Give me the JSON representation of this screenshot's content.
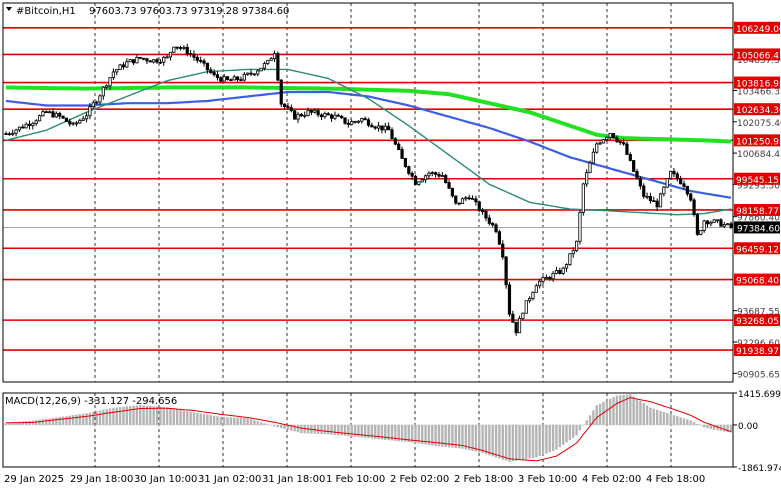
{
  "header": {
    "symbol": "#Bitcoin,H1",
    "ohlc": "97603.73 97603.73 97319.28 97384.60"
  },
  "colors": {
    "background": "#ffffff",
    "candle": "#000000",
    "level_line": "#e00000",
    "level_label_bg": "#e00000",
    "level_label_text": "#ffffff",
    "ma_fast": "#2e8b7a",
    "ma_mid": "#3b5fe0",
    "ma_slow": "#22e022",
    "grid": "#000000",
    "macd_hist": "#b4b4b4",
    "macd_signal": "#e00000",
    "current_price_bg": "#000000",
    "current_price_text": "#ffffff"
  },
  "chart_data": [
    {
      "type": "candlestick",
      "symbol": "#Bitcoin",
      "timeframe": "H1",
      "price_axis_ticks": [
        "104857.30",
        "103466.35",
        "102075.40",
        "100684.45",
        "99293.50",
        "97860.40",
        "93687.55",
        "92296.60",
        "90905.65"
      ],
      "horizontal_levels": [
        106249.06,
        105066.47,
        103816.95,
        102634.36,
        101250.95,
        99545.15,
        98158.77,
        96459.12,
        95068.4,
        93268.05,
        91938.97
      ],
      "level_labels": [
        "106249.06",
        "105066.47",
        "103816.95",
        "102634.36",
        "101250.95",
        "99545.15",
        "98158.77",
        "96459.12",
        "95068.40",
        "93268.05",
        "91938.97"
      ],
      "current_price": 97384.6,
      "current_price_label": "97384.60",
      "ylim": [
        90520,
        107350
      ],
      "x_tick_labels": [
        "29 Jan 2025",
        "29 Jan 18:00",
        "30 Jan 10:00",
        "31 Jan 02:00",
        "31 Jan 18:00",
        "1 Feb 10:00",
        "2 Feb 02:00",
        "2 Feb 18:00",
        "3 Feb 10:00",
        "4 Feb 02:00",
        "4 Feb 18:00"
      ],
      "close_path": [
        [
          0,
          101550
        ],
        [
          4,
          101800
        ],
        [
          8,
          102100
        ],
        [
          12,
          102500
        ],
        [
          16,
          102300
        ],
        [
          20,
          101900
        ],
        [
          24,
          102400
        ],
        [
          28,
          103300
        ],
        [
          32,
          104300
        ],
        [
          36,
          104700
        ],
        [
          40,
          104900
        ],
        [
          44,
          104800
        ],
        [
          48,
          104900
        ],
        [
          50,
          105500
        ],
        [
          54,
          105200
        ],
        [
          58,
          104700
        ],
        [
          62,
          104100
        ],
        [
          66,
          103900
        ],
        [
          70,
          104000
        ],
        [
          74,
          104300
        ],
        [
          78,
          104700
        ],
        [
          80,
          105200
        ],
        [
          82,
          102900
        ],
        [
          86,
          102300
        ],
        [
          90,
          102500
        ],
        [
          94,
          102400
        ],
        [
          98,
          102300
        ],
        [
          102,
          102000
        ],
        [
          106,
          102200
        ],
        [
          110,
          101900
        ],
        [
          114,
          101700
        ],
        [
          118,
          100400
        ],
        [
          122,
          99400
        ],
        [
          126,
          99800
        ],
        [
          130,
          99700
        ],
        [
          134,
          98400
        ],
        [
          138,
          98800
        ],
        [
          142,
          98000
        ],
        [
          146,
          97300
        ],
        [
          148,
          96200
        ],
        [
          150,
          93600
        ],
        [
          152,
          92800
        ],
        [
          154,
          93700
        ],
        [
          158,
          94900
        ],
        [
          162,
          95200
        ],
        [
          166,
          95500
        ],
        [
          170,
          96700
        ],
        [
          172,
          99300
        ],
        [
          176,
          101100
        ],
        [
          180,
          101600
        ],
        [
          184,
          101000
        ],
        [
          188,
          99500
        ],
        [
          190,
          98800
        ],
        [
          194,
          98400
        ],
        [
          198,
          99800
        ],
        [
          202,
          99300
        ],
        [
          204,
          98700
        ],
        [
          206,
          97000
        ],
        [
          208,
          97700
        ],
        [
          212,
          97600
        ],
        [
          216,
          97384.6
        ]
      ],
      "ma_fast": [
        [
          0,
          101250
        ],
        [
          12,
          101700
        ],
        [
          24,
          102500
        ],
        [
          36,
          103200
        ],
        [
          48,
          103900
        ],
        [
          60,
          104300
        ],
        [
          72,
          104400
        ],
        [
          84,
          104400
        ],
        [
          96,
          104000
        ],
        [
          108,
          103100
        ],
        [
          120,
          101900
        ],
        [
          132,
          100600
        ],
        [
          144,
          99300
        ],
        [
          156,
          98500
        ],
        [
          168,
          98200
        ],
        [
          176,
          98150
        ],
        [
          188,
          98050
        ],
        [
          200,
          97950
        ],
        [
          208,
          98000
        ],
        [
          216,
          98200
        ]
      ],
      "ma_mid": [
        [
          0,
          103000
        ],
        [
          12,
          102800
        ],
        [
          24,
          102800
        ],
        [
          36,
          102900
        ],
        [
          48,
          102900
        ],
        [
          60,
          103000
        ],
        [
          72,
          103200
        ],
        [
          84,
          103400
        ],
        [
          96,
          103400
        ],
        [
          108,
          103200
        ],
        [
          120,
          102800
        ],
        [
          132,
          102300
        ],
        [
          144,
          101800
        ],
        [
          156,
          101200
        ],
        [
          168,
          100500
        ],
        [
          180,
          100000
        ],
        [
          192,
          99500
        ],
        [
          204,
          99000
        ],
        [
          216,
          98700
        ]
      ],
      "ma_slow": [
        [
          0,
          103600
        ],
        [
          24,
          103550
        ],
        [
          48,
          103600
        ],
        [
          72,
          103600
        ],
        [
          96,
          103550
        ],
        [
          120,
          103450
        ],
        [
          132,
          103300
        ],
        [
          144,
          102900
        ],
        [
          156,
          102500
        ],
        [
          168,
          101900
        ],
        [
          176,
          101500
        ],
        [
          184,
          101350
        ],
        [
          196,
          101300
        ],
        [
          208,
          101250
        ],
        [
          216,
          101200
        ]
      ]
    },
    {
      "type": "bar",
      "indicator": "MACD",
      "label": "MACD(12,26,9) -331.127 -294.656",
      "axis_ticks": [
        "1415.699",
        "0.00",
        "-1861.974"
      ],
      "ylim": [
        -1861.974,
        1415.699
      ],
      "histogram": [
        [
          0,
          80
        ],
        [
          8,
          200
        ],
        [
          16,
          350
        ],
        [
          24,
          520
        ],
        [
          32,
          760
        ],
        [
          40,
          880
        ],
        [
          48,
          780
        ],
        [
          56,
          560
        ],
        [
          64,
          360
        ],
        [
          72,
          300
        ],
        [
          80,
          -60
        ],
        [
          88,
          -360
        ],
        [
          96,
          -420
        ],
        [
          104,
          -520
        ],
        [
          112,
          -650
        ],
        [
          120,
          -760
        ],
        [
          128,
          -930
        ],
        [
          136,
          -1050
        ],
        [
          142,
          -1250
        ],
        [
          150,
          -1630
        ],
        [
          158,
          -1440
        ],
        [
          164,
          -1090
        ],
        [
          170,
          -460
        ],
        [
          176,
          870
        ],
        [
          182,
          1300
        ],
        [
          186,
          1360
        ],
        [
          192,
          770
        ],
        [
          198,
          480
        ],
        [
          204,
          200
        ],
        [
          208,
          -110
        ],
        [
          212,
          -240
        ],
        [
          216,
          -331
        ]
      ],
      "signal": [
        [
          0,
          100
        ],
        [
          8,
          110
        ],
        [
          16,
          250
        ],
        [
          24,
          380
        ],
        [
          32,
          560
        ],
        [
          40,
          730
        ],
        [
          48,
          740
        ],
        [
          56,
          640
        ],
        [
          64,
          470
        ],
        [
          72,
          330
        ],
        [
          80,
          120
        ],
        [
          88,
          -140
        ],
        [
          96,
          -290
        ],
        [
          104,
          -410
        ],
        [
          112,
          -530
        ],
        [
          120,
          -660
        ],
        [
          128,
          -780
        ],
        [
          136,
          -910
        ],
        [
          142,
          -1130
        ],
        [
          150,
          -1500
        ],
        [
          158,
          -1590
        ],
        [
          164,
          -1380
        ],
        [
          170,
          -800
        ],
        [
          176,
          330
        ],
        [
          182,
          950
        ],
        [
          186,
          1210
        ],
        [
          192,
          1030
        ],
        [
          198,
          740
        ],
        [
          204,
          430
        ],
        [
          208,
          120
        ],
        [
          212,
          -90
        ],
        [
          216,
          -295
        ]
      ]
    }
  ]
}
